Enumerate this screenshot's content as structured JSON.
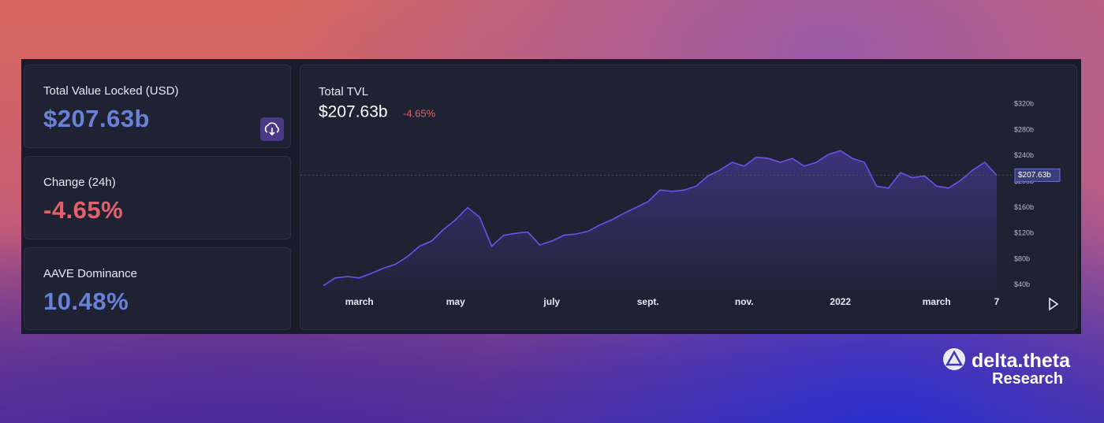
{
  "cards": [
    {
      "label": "Total Value Locked (USD)",
      "value": "$207.63b"
    },
    {
      "label": "Change (24h)",
      "value": "-4.65%"
    },
    {
      "label": "AAVE Dominance",
      "value": "10.48%"
    }
  ],
  "chart_data": {
    "type": "area",
    "title": "Total TVL",
    "headline": "$207.63b",
    "change": "-4.65%",
    "price_tag": "$207.63b",
    "categories": [
      null,
      null,
      null,
      "march",
      null,
      null,
      null,
      null,
      null,
      null,
      null,
      "may",
      null,
      null,
      null,
      null,
      null,
      null,
      null,
      "july",
      null,
      null,
      null,
      null,
      null,
      null,
      null,
      "sept.",
      null,
      null,
      null,
      null,
      null,
      null,
      null,
      "nov.",
      null,
      null,
      null,
      null,
      null,
      null,
      null,
      "2022",
      null,
      null,
      null,
      null,
      null,
      null,
      null,
      "march",
      null,
      null,
      null,
      null,
      "7"
    ],
    "series": [
      {
        "color": "#6f4ff0",
        "values": [
          39,
          51,
          53,
          51,
          58,
          66,
          72,
          84,
          100,
          108,
          126,
          141,
          160,
          145,
          100,
          117,
          120,
          122,
          102,
          108,
          117,
          119,
          123,
          133,
          141,
          151,
          160,
          169,
          187,
          185,
          187,
          193,
          209,
          218,
          230,
          224,
          238,
          236,
          230,
          236,
          224,
          230,
          242,
          248,
          236,
          230,
          193,
          190,
          214,
          206,
          209,
          193,
          190,
          202,
          218,
          230,
          210
        ]
      }
    ],
    "ylim": [
      30,
      330
    ],
    "yticks": [
      {
        "value": 40,
        "label": "$40b"
      },
      {
        "value": 80,
        "label": "$80b"
      },
      {
        "value": 120,
        "label": "$120b"
      },
      {
        "value": 160,
        "label": "$160b"
      },
      {
        "value": 200,
        "label": "$200b"
      },
      {
        "value": 240,
        "label": "$240b"
      },
      {
        "value": 280,
        "label": "$280b"
      },
      {
        "value": 320,
        "label": "$320b"
      }
    ]
  },
  "brand": {
    "name": "delta.theta",
    "subtitle": "Research"
  }
}
